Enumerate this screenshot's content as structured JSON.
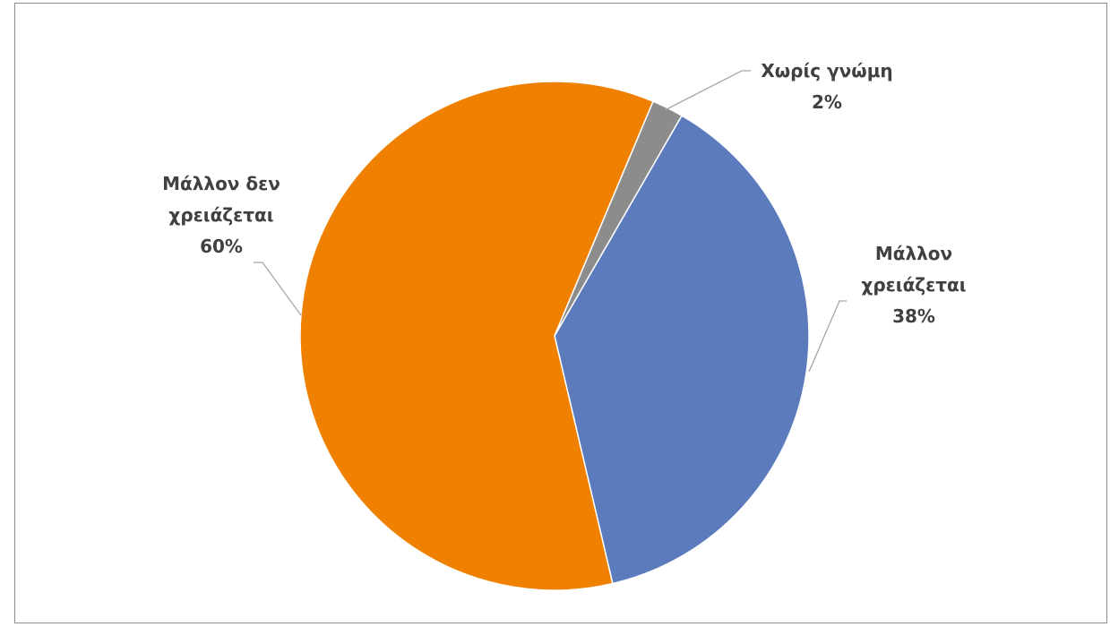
{
  "chart_data": {
    "type": "pie",
    "title": "",
    "slices": [
      {
        "name": "Μάλλον χρειάζεται",
        "value": 38,
        "label_lines": [
          "Μάλλον",
          "χρειάζεται",
          "38%"
        ],
        "color": "#5b7bbd"
      },
      {
        "name": "Μάλλον δεν χρειάζεται",
        "value": 60,
        "label_lines": [
          "Μάλλον δεν",
          "χρειάζεται",
          "60%"
        ],
        "color": "#f08000"
      },
      {
        "name": "Χωρίς γνώμη",
        "value": 2,
        "label_lines": [
          "Χωρίς γνώμη",
          "2%"
        ],
        "color": "#8c8c8c"
      }
    ],
    "start_angle_deg": 30,
    "direction": "clockwise",
    "legend": "none"
  }
}
